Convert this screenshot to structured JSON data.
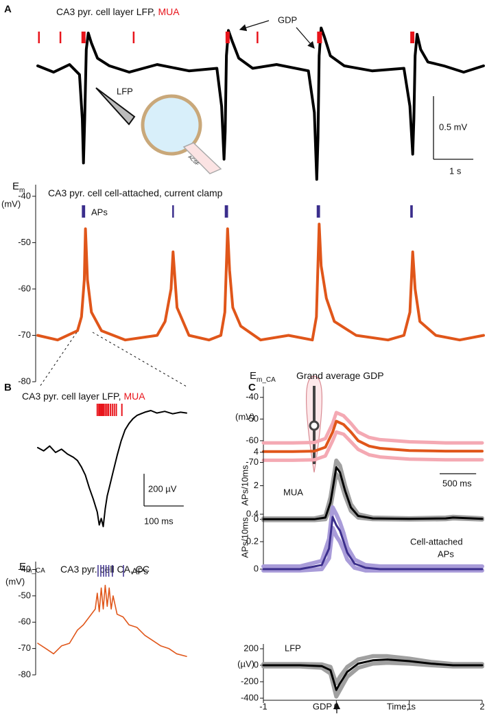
{
  "chart_data": [
    {
      "type": "line",
      "panel": "A",
      "title": "CA3 pyr. cell layer LFP,",
      "title_mua": "MUA",
      "title_mua_color": "#e8141b",
      "annotations": {
        "gdp": "GDP",
        "lfp": "LFP",
        "acsf": "ACSF"
      },
      "xlim": [
        0,
        11.2
      ],
      "ylim": [
        -0.9,
        0.4
      ],
      "x": [
        0,
        0.4,
        0.8,
        1.05,
        1.12,
        1.15,
        1.18,
        1.22,
        1.27,
        1.35,
        1.5,
        1.8,
        2.3,
        3.0,
        3.8,
        4.5,
        4.62,
        4.68,
        4.71,
        4.74,
        4.79,
        4.88,
        5.05,
        5.4,
        6.0,
        6.8,
        6.95,
        7.01,
        7.04,
        7.07,
        7.12,
        7.2,
        7.35,
        7.7,
        8.4,
        9.2,
        9.35,
        9.42,
        9.45,
        9.48,
        9.53,
        9.62,
        9.8,
        10.2,
        10.7,
        11.2
      ],
      "series": [
        {
          "color": "#000000",
          "values": [
            0.02,
            -0.03,
            0.03,
            -0.05,
            -0.4,
            -0.75,
            -0.4,
            0.15,
            0.28,
            0.2,
            0.08,
            0.02,
            -0.03,
            0.03,
            -0.02,
            0.0,
            -0.3,
            -0.72,
            -0.5,
            0.1,
            0.3,
            0.22,
            0.08,
            0.0,
            0.03,
            -0.02,
            -0.35,
            -0.88,
            -0.55,
            0.1,
            0.32,
            0.25,
            0.1,
            0.02,
            -0.02,
            0.0,
            -0.3,
            -0.68,
            -0.4,
            0.1,
            0.27,
            0.15,
            0.05,
            0.02,
            -0.03,
            0.02
          ]
        }
      ],
      "events": {
        "color": "#e8141b",
        "times": [
          0.03,
          0.57,
          1.12,
          1.14,
          1.16,
          1.18,
          2.41,
          4.74,
          4.76,
          4.78,
          4.8,
          5.52,
          7.04,
          7.06,
          7.08,
          7.1,
          7.12,
          9.38,
          9.4,
          9.42,
          9.44
        ]
      },
      "scalebars": {
        "y": {
          "value": 0.5,
          "label": "0.5 mV"
        },
        "x": {
          "value": 1,
          "label": "1 s"
        }
      }
    },
    {
      "type": "line",
      "title": "CA3 pyr. cell cell-attached, current clamp",
      "ylabel_symbol": "E",
      "ylabel_subscript": "m",
      "yunit": "(mV)",
      "xlim": [
        0,
        11.2
      ],
      "ylim": [
        -80,
        -37.5
      ],
      "yticks": [
        -40,
        -50,
        -60,
        -70,
        -80
      ],
      "x": [
        0,
        0.5,
        1.0,
        1.1,
        1.17,
        1.2,
        1.25,
        1.35,
        1.6,
        2.2,
        3.0,
        3.2,
        3.35,
        3.4,
        3.5,
        3.8,
        4.3,
        4.6,
        4.7,
        4.77,
        4.82,
        4.9,
        5.1,
        5.6,
        6.3,
        6.9,
        7.0,
        7.07,
        7.12,
        7.25,
        7.45,
        8.0,
        8.8,
        9.2,
        9.35,
        9.42,
        9.48,
        9.6,
        10.0,
        10.6,
        11.2
      ],
      "series": [
        {
          "color": "#e0561a",
          "values": [
            -70,
            -71,
            -69,
            -66,
            -58,
            -47,
            -58,
            -65,
            -69,
            -71,
            -70,
            -67,
            -60,
            -52,
            -64,
            -70,
            -71,
            -70,
            -65,
            -47,
            -56,
            -64,
            -68,
            -71,
            -70,
            -71,
            -66,
            -46,
            -55,
            -62,
            -67,
            -70,
            -71,
            -70,
            -65,
            -52,
            -60,
            -67,
            -70,
            -71,
            -70
          ]
        }
      ],
      "events": {
        "label": "APs",
        "color": "#3b2e8c",
        "times": [
          1.13,
          1.15,
          1.17,
          3.4,
          4.72,
          4.74,
          4.76,
          7.03,
          7.05,
          7.07,
          9.38,
          9.4
        ]
      }
    },
    {
      "type": "line",
      "panel": "B",
      "title": "CA3 pyr. cell layer LFP,",
      "title_mua": "MUA",
      "title_mua_color": "#e8141b",
      "xlim": [
        0,
        375
      ],
      "ylim": [
        -520,
        260
      ],
      "x": [
        0,
        15,
        30,
        45,
        60,
        75,
        90,
        100,
        110,
        120,
        130,
        140,
        150,
        155,
        160,
        165,
        170,
        175,
        180,
        190,
        200,
        210,
        220,
        230,
        240,
        250,
        260,
        270,
        285,
        300,
        320,
        340,
        360,
        375
      ],
      "series": [
        {
          "color": "#000000",
          "values": [
            0,
            -20,
            10,
            -30,
            -10,
            -40,
            -60,
            -80,
            -120,
            -170,
            -250,
            -320,
            -400,
            -480,
            -440,
            -490,
            -380,
            -300,
            -250,
            -150,
            -50,
            40,
            110,
            150,
            180,
            200,
            210,
            220,
            230,
            215,
            225,
            210,
            220,
            215
          ]
        }
      ],
      "events": {
        "color": "#e8141b",
        "times": [
          150,
          154,
          157,
          160,
          163,
          166,
          170,
          174,
          178,
          183,
          188,
          193,
          198,
          212
        ]
      },
      "scalebars": {
        "y": {
          "value": 200,
          "label": "200 µV"
        },
        "x": {
          "value": 100,
          "label": "100 ms"
        }
      }
    },
    {
      "type": "line",
      "title": "CA3 pyr. cell CA, CC",
      "ylabel_symbol": "E",
      "ylabel_subscript": "m_CA",
      "yunit": "(mV)",
      "xlim": [
        0,
        375
      ],
      "ylim": [
        -80,
        -37
      ],
      "yticks": [
        -40,
        -50,
        -60,
        -70,
        -80
      ],
      "x": [
        0,
        20,
        40,
        60,
        80,
        100,
        115,
        130,
        145,
        150,
        155,
        160,
        165,
        170,
        175,
        180,
        185,
        190,
        200,
        215,
        230,
        250,
        270,
        290,
        310,
        330,
        350,
        375
      ],
      "series": [
        {
          "color": "#e0561a",
          "values": [
            -68,
            -70,
            -72,
            -69,
            -68,
            -63,
            -61,
            -58,
            -55,
            -49,
            -56,
            -47,
            -55,
            -46,
            -54,
            -47,
            -55,
            -50,
            -57,
            -58,
            -61,
            -62,
            -65,
            -67,
            -69,
            -70,
            -72,
            -73
          ]
        }
      ],
      "events": {
        "label": "APs",
        "color": "#3b2e8c",
        "times": [
          152,
          159,
          166,
          172,
          179,
          188,
          216
        ]
      }
    },
    {
      "type": "line",
      "panel": "C",
      "title": "Grand average GDP",
      "ylabel_symbol": "E",
      "ylabel_subscript": "m_CA",
      "yunit": "(mV)",
      "xlim": [
        -1,
        2
      ],
      "ylim": [
        -73,
        -35
      ],
      "yticks": [
        -40,
        -50,
        -60,
        -70
      ],
      "x": [
        -1,
        -0.6,
        -0.3,
        -0.15,
        -0.05,
        0,
        0.1,
        0.2,
        0.3,
        0.45,
        0.6,
        0.8,
        1,
        1.5,
        2
      ],
      "series": [
        {
          "color": "#f4a9b3",
          "values": [
            -61,
            -61,
            -60.8,
            -59,
            -52,
            -47,
            -48.5,
            -52,
            -56,
            -58.5,
            -59.5,
            -60,
            -60.5,
            -61,
            -61
          ]
        },
        {
          "color": "#f4a9b3",
          "values": [
            -69,
            -69,
            -68.8,
            -67,
            -60,
            -56,
            -57,
            -60.5,
            -64,
            -66.5,
            -67.5,
            -68,
            -68.5,
            -68.8,
            -68.8
          ]
        },
        {
          "color": "#e0561a",
          "values": [
            -65,
            -65,
            -64.8,
            -63,
            -56,
            -51,
            -52.5,
            -56,
            -60,
            -62.5,
            -63.5,
            -64,
            -64.5,
            -64.8,
            -64.8
          ]
        }
      ],
      "scalebars": {
        "x": {
          "value": 0.5,
          "label": "500 ms"
        }
      }
    },
    {
      "type": "line",
      "label": "MUA",
      "ylabel": "APs/10ms",
      "xlim": [
        -1,
        2
      ],
      "ylim": [
        -0.15,
        4.15
      ],
      "yticks": [
        0,
        2,
        4
      ],
      "x": [
        -1,
        -0.3,
        -0.15,
        -0.08,
        0,
        0.05,
        0.12,
        0.2,
        0.3,
        0.5,
        1,
        1.5,
        1.6,
        2
      ],
      "series": [
        {
          "color": "#a0a0a0",
          "values": [
            0.05,
            0.05,
            0.2,
            1.3,
            3.5,
            3.2,
            2.0,
            0.9,
            0.3,
            0.1,
            0.06,
            0.1,
            0.15,
            0.06
          ]
        },
        {
          "color": "#a0a0a0",
          "values": [
            -0.05,
            -0.05,
            0,
            0.7,
            2.7,
            2.4,
            1.4,
            0.5,
            0.1,
            0,
            -0.02,
            0,
            0.05,
            -0.02
          ]
        },
        {
          "color": "#000000",
          "values": [
            0,
            0,
            0.1,
            1,
            3.1,
            2.8,
            1.7,
            0.7,
            0.2,
            0.05,
            0.02,
            0.05,
            0.1,
            0.02
          ]
        }
      ]
    },
    {
      "type": "line",
      "label_lines": [
        "Cell-attached",
        "APs"
      ],
      "ylabel": "APs/10ms",
      "xlim": [
        -1,
        2
      ],
      "ylim": [
        -0.02,
        0.455
      ],
      "yticks": [
        0,
        0.2,
        0.4
      ],
      "x": [
        -1,
        -0.5,
        -0.2,
        -0.1,
        -0.05,
        0,
        0.05,
        0.1,
        0.15,
        0.25,
        0.4,
        0.6,
        1,
        1.5,
        2
      ],
      "series": [
        {
          "color": "#a99cd9",
          "values": [
            0.02,
            0.02,
            0.06,
            0.22,
            0.45,
            0.4,
            0.34,
            0.26,
            0.16,
            0.07,
            0.03,
            0.02,
            0.02,
            0.02,
            0.02
          ]
        },
        {
          "color": "#a99cd9",
          "values": [
            -0.01,
            -0.01,
            0,
            0.08,
            0.3,
            0.24,
            0.2,
            0.14,
            0.07,
            0.01,
            -0.01,
            -0.01,
            -0.01,
            -0.01,
            -0.01
          ]
        },
        {
          "color": "#3b2e8c",
          "values": [
            0,
            0,
            0.03,
            0.15,
            0.38,
            0.32,
            0.28,
            0.2,
            0.12,
            0.04,
            0.01,
            0,
            0,
            0,
            0
          ]
        }
      ]
    },
    {
      "type": "line",
      "label": "LFP",
      "yunit": "(µV)",
      "xlim": [
        -1,
        2
      ],
      "ylim": [
        -425,
        258
      ],
      "yticks": [
        200,
        0,
        -200,
        -400
      ],
      "xticks": [
        -1,
        0,
        1,
        2
      ],
      "xlabel": "Time, s",
      "x_marker": "GDP",
      "x": [
        -1,
        -0.5,
        -0.2,
        -0.08,
        0,
        0.05,
        0.15,
        0.3,
        0.5,
        0.7,
        1,
        1.3,
        1.6,
        2
      ],
      "series": [
        {
          "color": "#a0a0a0",
          "values": [
            15,
            15,
            10,
            -20,
            -220,
            -140,
            -20,
            70,
            110,
            110,
            80,
            40,
            15,
            15
          ]
        },
        {
          "color": "#a0a0a0",
          "values": [
            -15,
            -15,
            -30,
            -100,
            -380,
            -300,
            -140,
            -30,
            20,
            30,
            20,
            0,
            -15,
            -15
          ]
        },
        {
          "color": "#000000",
          "values": [
            0,
            0,
            -10,
            -60,
            -300,
            -220,
            -80,
            20,
            60,
            70,
            50,
            20,
            0,
            0
          ]
        }
      ]
    }
  ]
}
